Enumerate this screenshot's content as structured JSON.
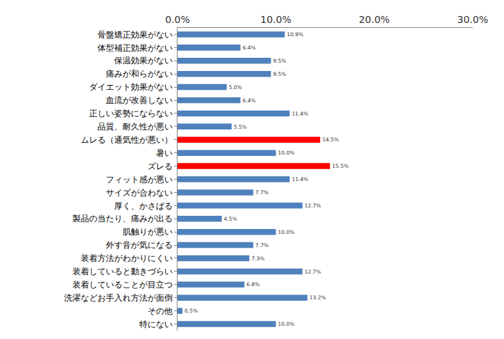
{
  "chart_data": {
    "type": "bar",
    "orientation": "horizontal",
    "categories": [
      "骨盤矯正効果がない",
      "体型補正効果がない",
      "保温効果がない",
      "痛みが和らがない",
      "ダイエット効果がない",
      "血流が改善しない",
      "正しい姿勢にならない",
      "品質、耐久性が悪い",
      "ムレる（通気性が悪い）",
      "暑い",
      "ズレる",
      "フィット感が悪い",
      "サイズが合わない",
      "厚く、かさばる",
      "製品の当たり、痛みが出る",
      "肌触りが悪い",
      "外す音が気になる",
      "装着方法がわかりにくい",
      "装着していると動きづらい",
      "装着していることが目立つ",
      "洗濯などお手入れ方法が面倒",
      "その他",
      "特にない"
    ],
    "values": [
      10.9,
      6.4,
      9.5,
      9.5,
      5.0,
      6.4,
      11.4,
      5.5,
      14.5,
      10.0,
      15.5,
      11.4,
      7.7,
      12.7,
      4.5,
      10.0,
      7.7,
      7.3,
      12.7,
      6.8,
      13.2,
      0.5,
      10.0
    ],
    "value_labels": [
      "10.9%",
      "6.4%",
      "9.5%",
      "9.5%",
      "5.0%",
      "6.4%",
      "11.4%",
      "5.5%",
      "14.5%",
      "10.0%",
      "15.5%",
      "11.4%",
      "7.7%",
      "12.7%",
      "4.5%",
      "10.0%",
      "7.7%",
      "7.3%",
      "12.7%",
      "6.8%",
      "13.2%",
      "0.5%",
      "10.0%"
    ],
    "colors": [
      "#4f81bd",
      "#4f81bd",
      "#4f81bd",
      "#4f81bd",
      "#4f81bd",
      "#4f81bd",
      "#4f81bd",
      "#4f81bd",
      "#ff0000",
      "#4f81bd",
      "#ff0000",
      "#4f81bd",
      "#4f81bd",
      "#4f81bd",
      "#4f81bd",
      "#4f81bd",
      "#4f81bd",
      "#4f81bd",
      "#4f81bd",
      "#4f81bd",
      "#4f81bd",
      "#4f81bd",
      "#4f81bd"
    ],
    "xlim": [
      0,
      30
    ],
    "xticks": [
      {
        "value": 0,
        "label": "0.0%"
      },
      {
        "value": 10,
        "label": "10.0%"
      },
      {
        "value": 20,
        "label": "20.0%"
      },
      {
        "value": 30,
        "label": "30.0%"
      }
    ],
    "grid": false,
    "data_labels": true
  }
}
